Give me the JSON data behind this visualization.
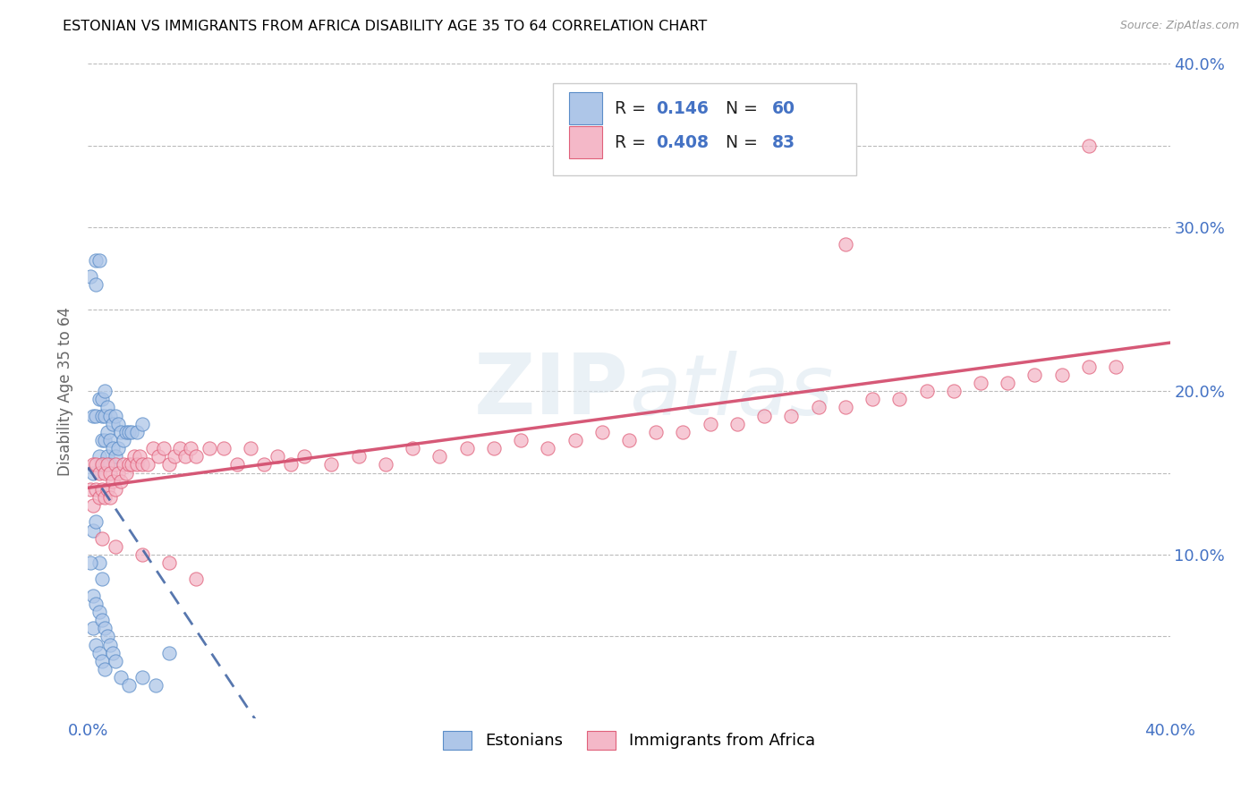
{
  "title": "ESTONIAN VS IMMIGRANTS FROM AFRICA DISABILITY AGE 35 TO 64 CORRELATION CHART",
  "source": "Source: ZipAtlas.com",
  "ylabel": "Disability Age 35 to 64",
  "xlim": [
    0.0,
    0.4
  ],
  "ylim": [
    0.0,
    0.4
  ],
  "xtick_vals": [
    0.0,
    0.05,
    0.1,
    0.15,
    0.2,
    0.25,
    0.3,
    0.35,
    0.4
  ],
  "ytick_vals": [
    0.0,
    0.05,
    0.1,
    0.15,
    0.2,
    0.25,
    0.3,
    0.35,
    0.4
  ],
  "xticklabels": [
    "0.0%",
    "",
    "",
    "",
    "",
    "",
    "",
    "",
    "40.0%"
  ],
  "yticklabels_right": [
    "",
    "",
    "10.0%",
    "",
    "20.0%",
    "",
    "30.0%",
    "",
    "40.0%"
  ],
  "legend_R1": "0.146",
  "legend_N1": "60",
  "legend_R2": "0.408",
  "legend_N2": "83",
  "color_estonian_fill": "#aec6e8",
  "color_estonian_edge": "#5b8dc8",
  "color_africa_fill": "#f4b8c8",
  "color_africa_edge": "#e0607a",
  "color_blue_line": "#3a5fa0",
  "color_pink_line": "#d45070",
  "watermark": "ZIPatlas",
  "est_x": [
    0.001,
    0.002,
    0.002,
    0.002,
    0.003,
    0.003,
    0.003,
    0.003,
    0.004,
    0.004,
    0.004,
    0.004,
    0.005,
    0.005,
    0.005,
    0.005,
    0.005,
    0.006,
    0.006,
    0.006,
    0.006,
    0.007,
    0.007,
    0.007,
    0.008,
    0.008,
    0.008,
    0.009,
    0.009,
    0.01,
    0.01,
    0.011,
    0.011,
    0.012,
    0.013,
    0.014,
    0.015,
    0.016,
    0.018,
    0.02,
    0.001,
    0.002,
    0.002,
    0.003,
    0.003,
    0.004,
    0.004,
    0.005,
    0.005,
    0.006,
    0.006,
    0.007,
    0.008,
    0.009,
    0.01,
    0.012,
    0.015,
    0.02,
    0.025,
    0.03
  ],
  "est_y": [
    0.27,
    0.15,
    0.185,
    0.115,
    0.28,
    0.265,
    0.185,
    0.12,
    0.28,
    0.195,
    0.16,
    0.095,
    0.195,
    0.185,
    0.17,
    0.155,
    0.085,
    0.2,
    0.185,
    0.17,
    0.155,
    0.19,
    0.175,
    0.16,
    0.185,
    0.17,
    0.155,
    0.18,
    0.165,
    0.185,
    0.16,
    0.18,
    0.165,
    0.175,
    0.17,
    0.175,
    0.175,
    0.175,
    0.175,
    0.18,
    0.095,
    0.075,
    0.055,
    0.07,
    0.045,
    0.065,
    0.04,
    0.06,
    0.035,
    0.055,
    0.03,
    0.05,
    0.045,
    0.04,
    0.035,
    0.025,
    0.02,
    0.025,
    0.02,
    0.04
  ],
  "afr_x": [
    0.001,
    0.002,
    0.002,
    0.003,
    0.003,
    0.004,
    0.004,
    0.005,
    0.005,
    0.006,
    0.006,
    0.007,
    0.007,
    0.008,
    0.008,
    0.009,
    0.01,
    0.01,
    0.011,
    0.012,
    0.013,
    0.014,
    0.015,
    0.016,
    0.017,
    0.018,
    0.019,
    0.02,
    0.022,
    0.024,
    0.026,
    0.028,
    0.03,
    0.032,
    0.034,
    0.036,
    0.038,
    0.04,
    0.045,
    0.05,
    0.055,
    0.06,
    0.065,
    0.07,
    0.075,
    0.08,
    0.09,
    0.1,
    0.11,
    0.12,
    0.13,
    0.14,
    0.15,
    0.16,
    0.17,
    0.18,
    0.19,
    0.2,
    0.21,
    0.22,
    0.23,
    0.24,
    0.25,
    0.26,
    0.27,
    0.28,
    0.29,
    0.3,
    0.31,
    0.32,
    0.33,
    0.34,
    0.35,
    0.36,
    0.37,
    0.38,
    0.005,
    0.01,
    0.02,
    0.03,
    0.04,
    0.28,
    0.37
  ],
  "afr_y": [
    0.14,
    0.155,
    0.13,
    0.155,
    0.14,
    0.15,
    0.135,
    0.155,
    0.14,
    0.15,
    0.135,
    0.155,
    0.14,
    0.15,
    0.135,
    0.145,
    0.155,
    0.14,
    0.15,
    0.145,
    0.155,
    0.15,
    0.155,
    0.155,
    0.16,
    0.155,
    0.16,
    0.155,
    0.155,
    0.165,
    0.16,
    0.165,
    0.155,
    0.16,
    0.165,
    0.16,
    0.165,
    0.16,
    0.165,
    0.165,
    0.155,
    0.165,
    0.155,
    0.16,
    0.155,
    0.16,
    0.155,
    0.16,
    0.155,
    0.165,
    0.16,
    0.165,
    0.165,
    0.17,
    0.165,
    0.17,
    0.175,
    0.17,
    0.175,
    0.175,
    0.18,
    0.18,
    0.185,
    0.185,
    0.19,
    0.19,
    0.195,
    0.195,
    0.2,
    0.2,
    0.205,
    0.205,
    0.21,
    0.21,
    0.215,
    0.215,
    0.11,
    0.105,
    0.1,
    0.095,
    0.085,
    0.29,
    0.35
  ]
}
